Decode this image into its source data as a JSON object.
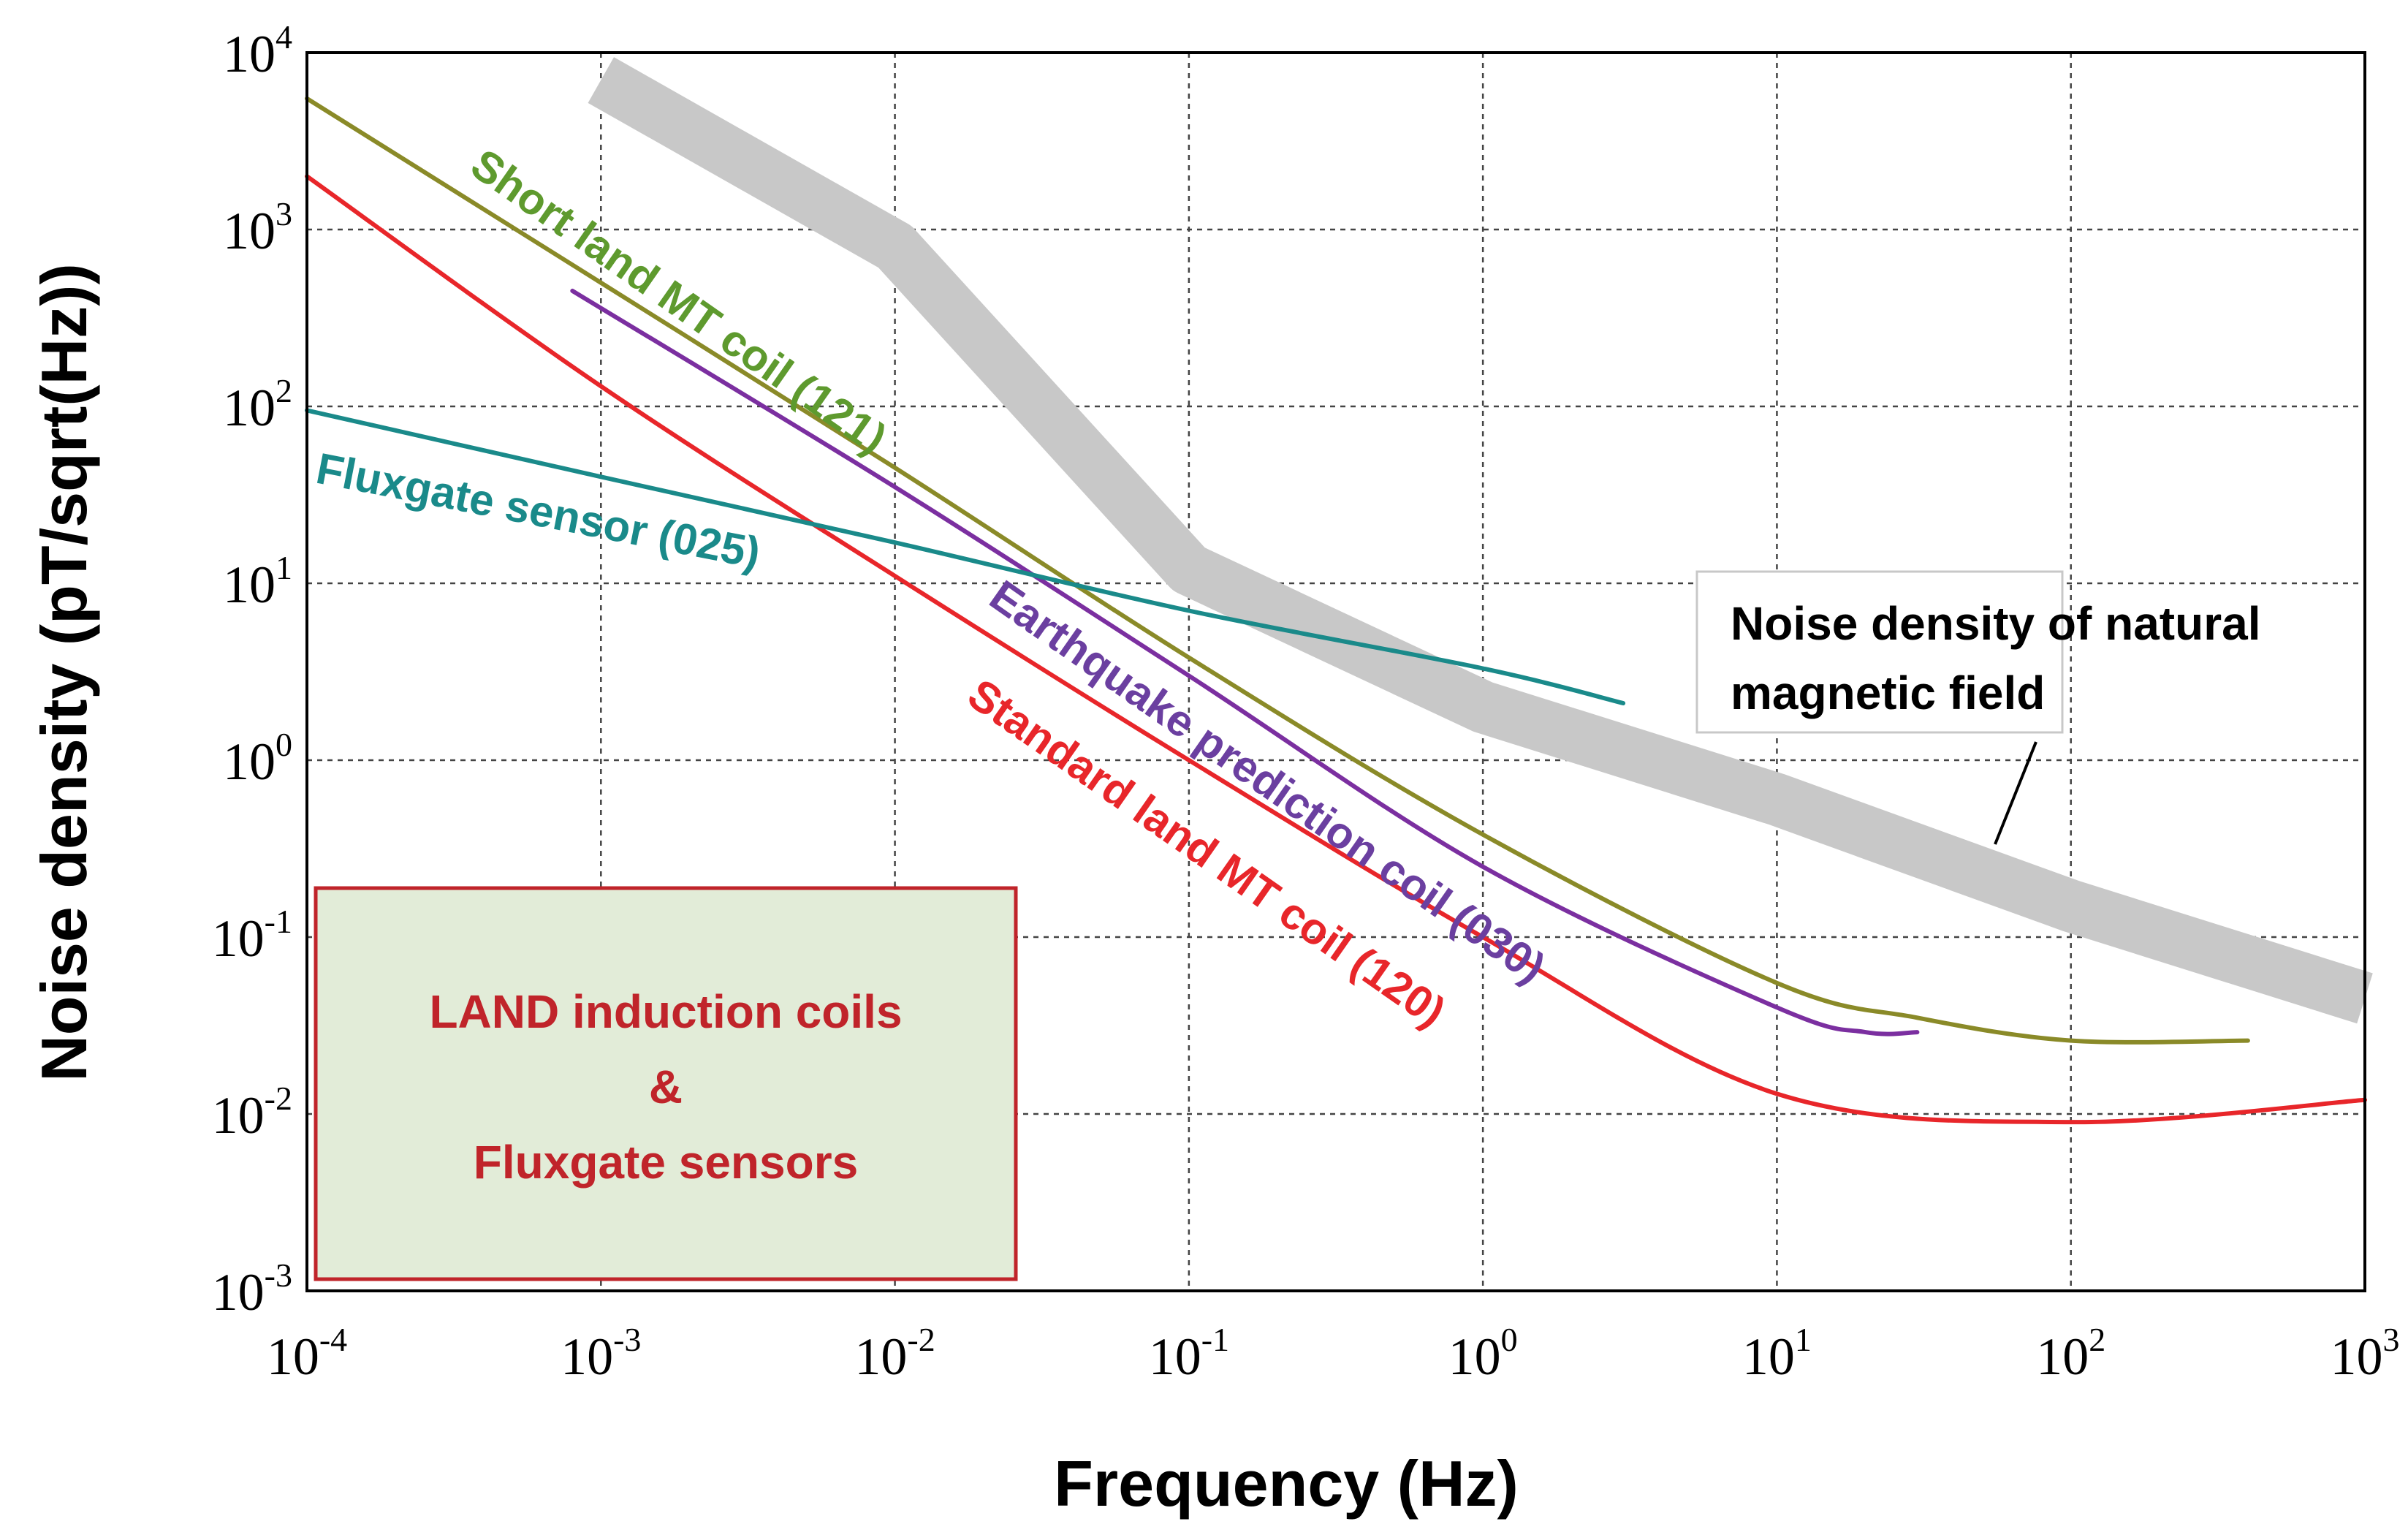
{
  "chart_data": {
    "type": "line",
    "xscale": "log",
    "yscale": "log",
    "xlim": [
      0.0001,
      1000
    ],
    "ylim": [
      0.001,
      10000
    ],
    "xlabel": "Frequency (Hz)",
    "ylabel": "Noise density (pT/sqrt(Hz))",
    "grid": true,
    "x_ticks": [
      {
        "base": "10",
        "exp": "-4",
        "value": 0.0001
      },
      {
        "base": "10",
        "exp": "-3",
        "value": 0.001
      },
      {
        "base": "10",
        "exp": "-2",
        "value": 0.01
      },
      {
        "base": "10",
        "exp": "-1",
        "value": 0.1
      },
      {
        "base": "10",
        "exp": "0",
        "value": 1
      },
      {
        "base": "10",
        "exp": "1",
        "value": 10
      },
      {
        "base": "10",
        "exp": "2",
        "value": 100
      },
      {
        "base": "10",
        "exp": "3",
        "value": 1000
      }
    ],
    "y_ticks": [
      {
        "base": "10",
        "exp": "4",
        "value": 10000
      },
      {
        "base": "10",
        "exp": "3",
        "value": 1000
      },
      {
        "base": "10",
        "exp": "2",
        "value": 100
      },
      {
        "base": "10",
        "exp": "1",
        "value": 10
      },
      {
        "base": "10",
        "exp": "0",
        "value": 1
      },
      {
        "base": "10",
        "exp": "-1",
        "value": 0.1
      },
      {
        "base": "10",
        "exp": "-2",
        "value": 0.01
      },
      {
        "base": "10",
        "exp": "-3",
        "value": 0.001
      }
    ],
    "series": [
      {
        "name": "Noise density of natural magnetic field",
        "style": "band",
        "color": "#c8c8c8",
        "x": [
          0.001,
          0.01,
          0.1,
          1,
          10,
          100,
          1000
        ],
        "y": [
          7000,
          800,
          12,
          2,
          0.6,
          0.15,
          0.045
        ]
      },
      {
        "name": "Short land MT coil (121)",
        "color": "#8a8a28",
        "label_color": "#5e9a2e",
        "x": [
          0.0001,
          0.001,
          0.01,
          0.1,
          1,
          10,
          30,
          100,
          400
        ],
        "y": [
          5500,
          500,
          45,
          3.8,
          0.38,
          0.055,
          0.035,
          0.026,
          0.026
        ]
      },
      {
        "name": "Earthquake prediction coil (030)",
        "color": "#7b2fa0",
        "label_color": "#6b3fa0",
        "x": [
          0.0008,
          0.01,
          0.1,
          1,
          10,
          20,
          30
        ],
        "y": [
          450,
          35,
          3,
          0.25,
          0.04,
          0.029,
          0.029
        ]
      },
      {
        "name": "Standard land MT coil (120)",
        "color": "#e8262a",
        "label_color": "#e8262a",
        "x": [
          0.0001,
          0.001,
          0.01,
          0.1,
          1,
          10,
          100,
          1000
        ],
        "y": [
          2000,
          130,
          11,
          1,
          0.1,
          0.013,
          0.009,
          0.012
        ]
      },
      {
        "name": "Fluxgate sensor (025)",
        "color": "#1a8a8a",
        "label_color": "#1a8a8a",
        "x": [
          0.0001,
          0.001,
          0.01,
          0.1,
          1,
          3
        ],
        "y": [
          95,
          40,
          17,
          7,
          3.3,
          2.1
        ]
      }
    ],
    "annotations": {
      "natural_field_box": [
        "Noise density of natural",
        "magnetic field"
      ],
      "legend_box": [
        "LAND induction coils",
        "&",
        "Fluxgate sensors"
      ]
    }
  }
}
